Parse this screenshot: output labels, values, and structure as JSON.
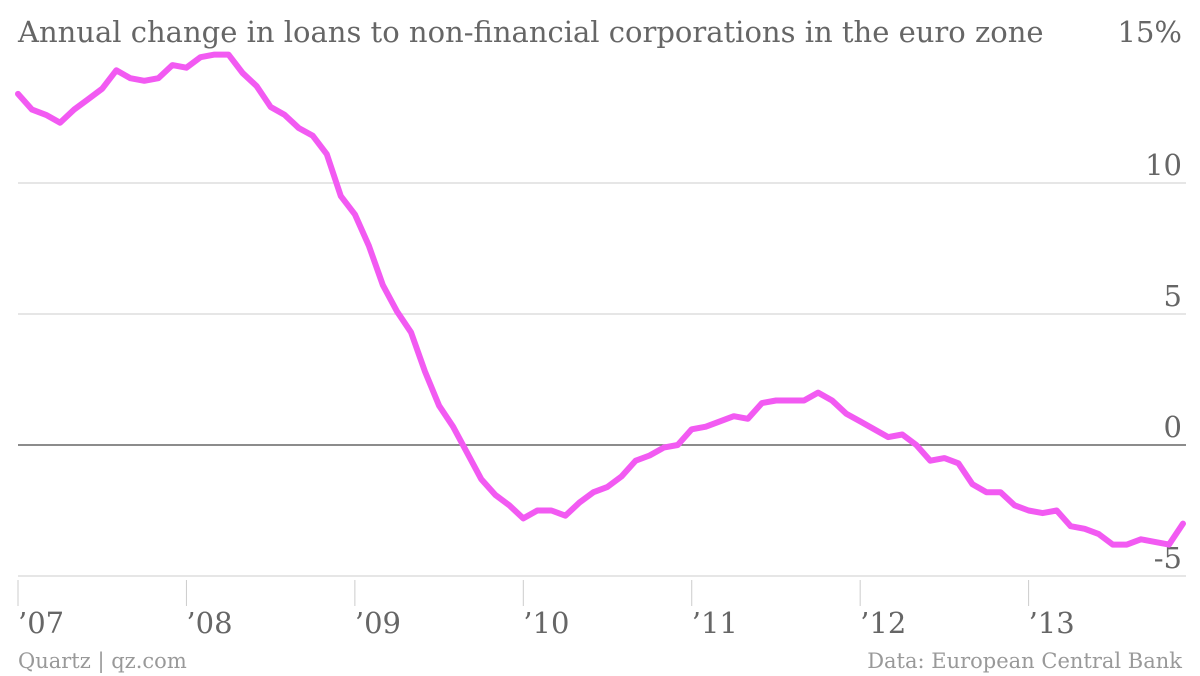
{
  "chart_data": {
    "type": "line",
    "title": "Annual change in loans to non-financial corporations in the euro zone",
    "y_axis": {
      "range": [
        -5,
        15
      ],
      "ticks": [
        {
          "value": 15,
          "label": "15%"
        },
        {
          "value": 10,
          "label": "10"
        },
        {
          "value": 5,
          "label": "5"
        },
        {
          "value": 0,
          "label": "0"
        },
        {
          "value": -5,
          "label": "-5"
        }
      ],
      "position": "right",
      "grid": true
    },
    "x_axis": {
      "range": [
        "2007-01",
        "2013-10"
      ],
      "ticks": [
        {
          "value": "2007-01",
          "label": "’07"
        },
        {
          "value": "2008-01",
          "label": "’08"
        },
        {
          "value": "2009-01",
          "label": "’09"
        },
        {
          "value": "2010-01",
          "label": "’10"
        },
        {
          "value": "2011-01",
          "label": "’11"
        },
        {
          "value": "2012-01",
          "label": "’12"
        },
        {
          "value": "2013-01",
          "label": "’13"
        }
      ]
    },
    "series": [
      {
        "color": "#f25af2",
        "points": [
          [
            "2007-01",
            13.4
          ],
          [
            "2007-02",
            12.8
          ],
          [
            "2007-03",
            12.6
          ],
          [
            "2007-04",
            12.3
          ],
          [
            "2007-05",
            12.8
          ],
          [
            "2007-06",
            13.2
          ],
          [
            "2007-07",
            13.6
          ],
          [
            "2007-08",
            14.3
          ],
          [
            "2007-09",
            14.0
          ],
          [
            "2007-10",
            13.9
          ],
          [
            "2007-11",
            14.0
          ],
          [
            "2007-12",
            14.5
          ],
          [
            "2008-01",
            14.4
          ],
          [
            "2008-02",
            14.8
          ],
          [
            "2008-03",
            14.9
          ],
          [
            "2008-04",
            14.9
          ],
          [
            "2008-05",
            14.2
          ],
          [
            "2008-06",
            13.7
          ],
          [
            "2008-07",
            12.9
          ],
          [
            "2008-08",
            12.6
          ],
          [
            "2008-09",
            12.1
          ],
          [
            "2008-10",
            11.8
          ],
          [
            "2008-11",
            11.1
          ],
          [
            "2008-12",
            9.5
          ],
          [
            "2009-01",
            8.8
          ],
          [
            "2009-02",
            7.6
          ],
          [
            "2009-03",
            6.1
          ],
          [
            "2009-04",
            5.1
          ],
          [
            "2009-05",
            4.3
          ],
          [
            "2009-06",
            2.8
          ],
          [
            "2009-07",
            1.5
          ],
          [
            "2009-08",
            0.7
          ],
          [
            "2009-09",
            -0.3
          ],
          [
            "2009-10",
            -1.3
          ],
          [
            "2009-11",
            -1.9
          ],
          [
            "2009-12",
            -2.3
          ],
          [
            "2010-01",
            -2.8
          ],
          [
            "2010-02",
            -2.5
          ],
          [
            "2010-03",
            -2.5
          ],
          [
            "2010-04",
            -2.7
          ],
          [
            "2010-05",
            -2.2
          ],
          [
            "2010-06",
            -1.8
          ],
          [
            "2010-07",
            -1.6
          ],
          [
            "2010-08",
            -1.2
          ],
          [
            "2010-09",
            -0.6
          ],
          [
            "2010-10",
            -0.4
          ],
          [
            "2010-11",
            -0.1
          ],
          [
            "2010-12",
            0.0
          ],
          [
            "2011-01",
            0.6
          ],
          [
            "2011-02",
            0.7
          ],
          [
            "2011-03",
            0.9
          ],
          [
            "2011-04",
            1.1
          ],
          [
            "2011-05",
            1.0
          ],
          [
            "2011-06",
            1.6
          ],
          [
            "2011-07",
            1.7
          ],
          [
            "2011-08",
            1.7
          ],
          [
            "2011-09",
            1.7
          ],
          [
            "2011-10",
            2.0
          ],
          [
            "2011-11",
            1.7
          ],
          [
            "2011-12",
            1.2
          ],
          [
            "2012-01",
            0.9
          ],
          [
            "2012-02",
            0.6
          ],
          [
            "2012-03",
            0.3
          ],
          [
            "2012-04",
            0.4
          ],
          [
            "2012-05",
            0.0
          ],
          [
            "2012-06",
            -0.6
          ],
          [
            "2012-07",
            -0.5
          ],
          [
            "2012-08",
            -0.7
          ],
          [
            "2012-09",
            -1.5
          ],
          [
            "2012-10",
            -1.8
          ],
          [
            "2012-11",
            -1.8
          ],
          [
            "2012-12",
            -2.3
          ],
          [
            "2013-01",
            -2.5
          ],
          [
            "2013-02",
            -2.6
          ],
          [
            "2013-03",
            -2.5
          ],
          [
            "2013-04",
            -3.1
          ],
          [
            "2013-05",
            -3.2
          ],
          [
            "2013-06",
            -3.4
          ],
          [
            "2013-07",
            -3.8
          ],
          [
            "2013-08",
            -3.8
          ],
          [
            "2013-09",
            -3.6
          ],
          [
            "2013-10",
            -3.7
          ],
          [
            "2013-11",
            -3.8
          ],
          [
            "2013-12",
            -3.0
          ]
        ]
      }
    ]
  },
  "footer": {
    "source_left": "Quartz | qz.com",
    "source_right": "Data: European Central Bank"
  }
}
